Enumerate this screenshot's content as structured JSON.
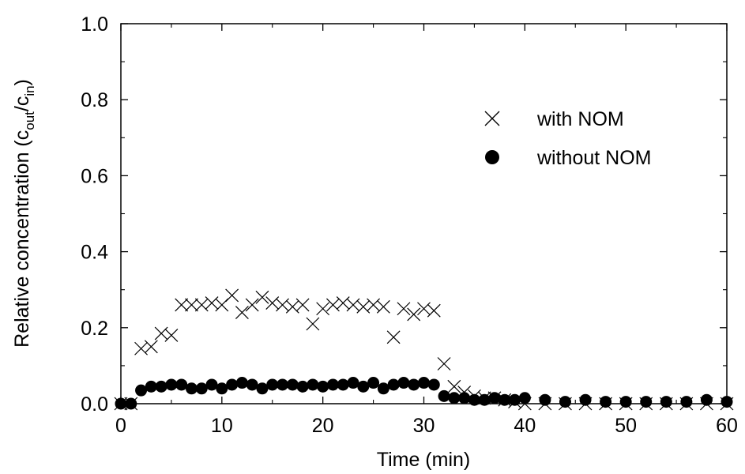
{
  "chart_data": {
    "type": "scatter",
    "xlabel": "Time (min)",
    "ylabel": {
      "main": "Relative concentration (c",
      "sub1": "out",
      "mid": "/c",
      "sub2": "in",
      "end": ")"
    },
    "xlim": [
      0,
      60
    ],
    "ylim": [
      0,
      1.0
    ],
    "x_ticks": [
      0,
      10,
      20,
      30,
      40,
      50,
      60
    ],
    "x_tick_labels": [
      "0",
      "10",
      "20",
      "30",
      "40",
      "50",
      "60"
    ],
    "y_ticks": [
      0,
      0.2,
      0.4,
      0.6,
      0.8,
      1.0
    ],
    "y_tick_labels": [
      "0.0",
      "0.2",
      "0.4",
      "0.6",
      "0.8",
      "1.0"
    ],
    "grid": false,
    "legend_position": "upper-right",
    "series": [
      {
        "name": "with NOM",
        "marker": "x",
        "x": [
          0,
          1,
          2,
          3,
          4,
          5,
          6,
          7,
          8,
          9,
          10,
          11,
          12,
          13,
          14,
          15,
          16,
          17,
          18,
          19,
          20,
          21,
          22,
          23,
          24,
          25,
          26,
          27,
          28,
          29,
          30,
          31,
          32,
          33,
          34,
          35,
          36,
          37,
          38,
          39,
          40,
          42,
          44,
          46,
          48,
          50,
          52,
          54,
          56,
          58,
          60
        ],
        "y": [
          0.0,
          0.0,
          0.145,
          0.15,
          0.185,
          0.18,
          0.26,
          0.26,
          0.26,
          0.265,
          0.26,
          0.285,
          0.24,
          0.26,
          0.28,
          0.265,
          0.26,
          0.255,
          0.26,
          0.21,
          0.25,
          0.26,
          0.265,
          0.26,
          0.255,
          0.26,
          0.255,
          0.175,
          0.25,
          0.235,
          0.25,
          0.245,
          0.105,
          0.045,
          0.03,
          0.02,
          0.015,
          0.015,
          0.01,
          0.005,
          0.0,
          0.0,
          0.0,
          0.0,
          0.0,
          0.0,
          0.0,
          0.0,
          0.0,
          0.0,
          0.0
        ]
      },
      {
        "name": "without NOM",
        "marker": "filled-circle",
        "x": [
          0,
          1,
          2,
          3,
          4,
          5,
          6,
          7,
          8,
          9,
          10,
          11,
          12,
          13,
          14,
          15,
          16,
          17,
          18,
          19,
          20,
          21,
          22,
          23,
          24,
          25,
          26,
          27,
          28,
          29,
          30,
          31,
          32,
          33,
          34,
          35,
          36,
          37,
          38,
          39,
          40,
          42,
          44,
          46,
          48,
          50,
          52,
          54,
          56,
          58,
          60
        ],
        "y": [
          0.0,
          0.0,
          0.035,
          0.045,
          0.045,
          0.05,
          0.05,
          0.04,
          0.04,
          0.05,
          0.04,
          0.05,
          0.055,
          0.05,
          0.04,
          0.05,
          0.05,
          0.05,
          0.045,
          0.05,
          0.045,
          0.05,
          0.05,
          0.055,
          0.045,
          0.055,
          0.04,
          0.05,
          0.055,
          0.05,
          0.055,
          0.05,
          0.02,
          0.015,
          0.015,
          0.01,
          0.01,
          0.015,
          0.01,
          0.01,
          0.015,
          0.01,
          0.005,
          0.01,
          0.005,
          0.005,
          0.005,
          0.005,
          0.005,
          0.01,
          0.005
        ]
      }
    ]
  }
}
